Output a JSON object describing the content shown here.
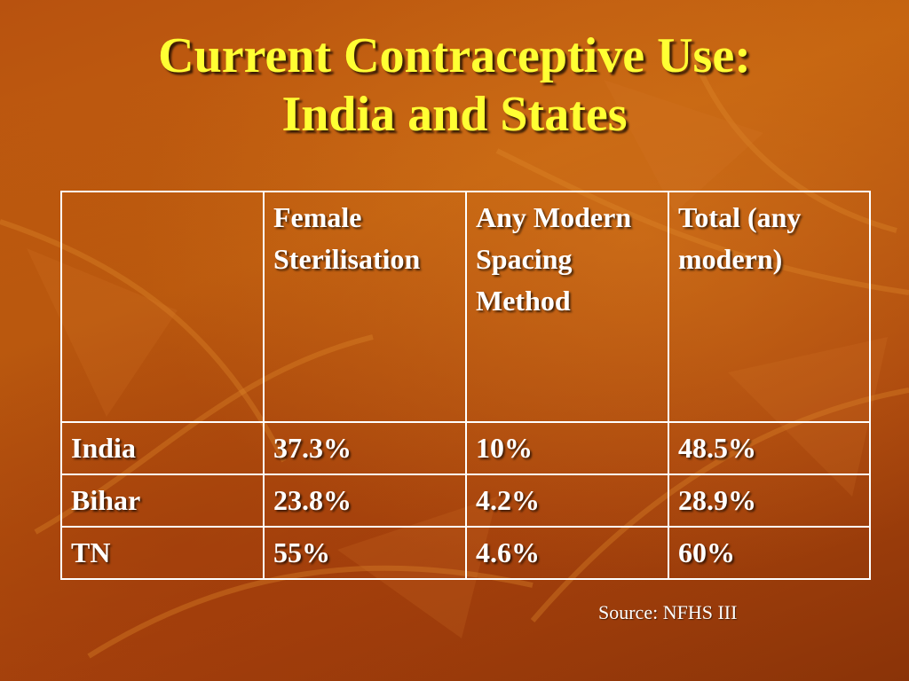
{
  "slide": {
    "title_line1": "Current Contraceptive Use:",
    "title_line2": "India and States",
    "source": "Source: NFHS III"
  },
  "table": {
    "headers": [
      "",
      "Female Sterilisation",
      "Any Modern Spacing Method",
      "Total (any modern)"
    ],
    "rows": [
      [
        "India",
        "37.3%",
        "10%",
        "48.5%"
      ],
      [
        "Bihar",
        "23.8%",
        "4.2%",
        "28.9%"
      ],
      [
        "TN",
        "55%",
        "4.6%",
        "60%"
      ]
    ]
  },
  "colors": {
    "title": "#ffff33",
    "text": "#ffffff",
    "background": "#b8520f"
  }
}
